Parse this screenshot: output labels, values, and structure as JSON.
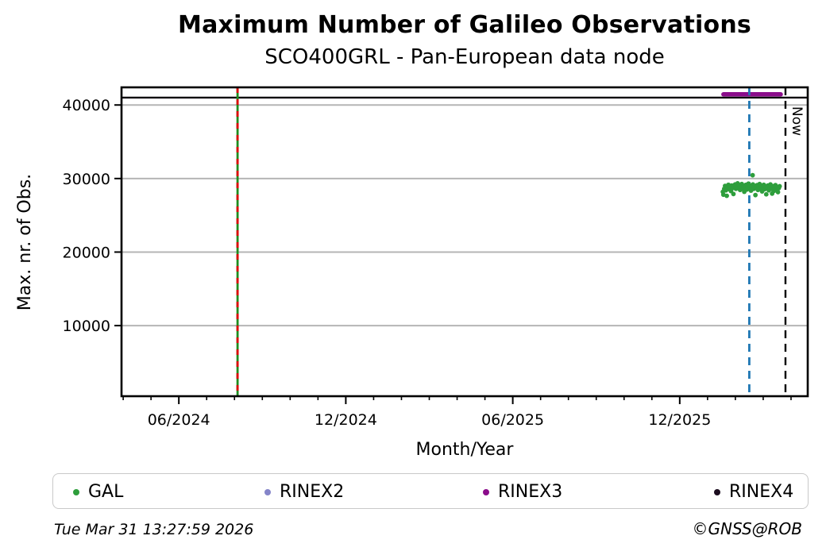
{
  "header": {
    "title": "Maximum Number of Galileo Observations",
    "subtitle": "SCO400GRL - Pan-European data node"
  },
  "chart_data": {
    "type": "scatter",
    "title": "Maximum Number of Galileo Observations",
    "subtitle": "SCO400GRL - Pan-European data node",
    "xlabel": "Month/Year",
    "ylabel": "Max. nr. of Obs.",
    "x_unit": "months since 2024-04-01",
    "xlim": [
      -0.06,
      24.6
    ],
    "ylim": [
      400,
      42400
    ],
    "grid": "horizontal-gray",
    "yticks": [
      10000,
      20000,
      30000,
      40000
    ],
    "xticks_major": [
      {
        "m": 2,
        "label": "06/2024"
      },
      {
        "m": 8,
        "label": "12/2024"
      },
      {
        "m": 14,
        "label": "06/2025"
      },
      {
        "m": 20,
        "label": "12/2025"
      }
    ],
    "xticks_minor_months": [
      0,
      1,
      2,
      3,
      4,
      5,
      6,
      7,
      8,
      9,
      10,
      11,
      12,
      13,
      14,
      15,
      16,
      17,
      18,
      19,
      20,
      21,
      22,
      23,
      24
    ],
    "series": [
      {
        "name": "GAL",
        "color": "#2e9e3c",
        "kind": "scatter",
        "points": [
          [
            21.55,
            28200
          ],
          [
            21.57,
            27800
          ],
          [
            21.6,
            28600
          ],
          [
            21.63,
            29000
          ],
          [
            21.66,
            28400
          ],
          [
            21.69,
            27650
          ],
          [
            21.72,
            28800
          ],
          [
            21.75,
            29150
          ],
          [
            21.78,
            28550
          ],
          [
            21.81,
            28900
          ],
          [
            21.84,
            28300
          ],
          [
            21.87,
            29050
          ],
          [
            21.9,
            28700
          ],
          [
            21.93,
            27900
          ],
          [
            21.96,
            28850
          ],
          [
            21.99,
            29200
          ],
          [
            22.02,
            28600
          ],
          [
            22.05,
            28950
          ],
          [
            22.08,
            29350
          ],
          [
            22.11,
            28750
          ],
          [
            22.14,
            29100
          ],
          [
            22.17,
            28450
          ],
          [
            22.2,
            28900
          ],
          [
            22.23,
            29250
          ],
          [
            22.26,
            28650
          ],
          [
            22.29,
            29000
          ],
          [
            22.32,
            28200
          ],
          [
            22.35,
            28850
          ],
          [
            22.38,
            29150
          ],
          [
            22.41,
            28500
          ],
          [
            22.44,
            28950
          ],
          [
            22.47,
            29300
          ],
          [
            22.5,
            28700
          ],
          [
            22.53,
            29050
          ],
          [
            22.56,
            28350
          ],
          [
            22.59,
            28900
          ],
          [
            22.62,
            30450
          ],
          [
            22.63,
            29200
          ],
          [
            22.66,
            28600
          ],
          [
            22.69,
            28950
          ],
          [
            22.72,
            27750
          ],
          [
            22.75,
            28800
          ],
          [
            22.78,
            29100
          ],
          [
            22.81,
            28450
          ],
          [
            22.84,
            28900
          ],
          [
            22.87,
            29250
          ],
          [
            22.9,
            28650
          ],
          [
            22.93,
            29000
          ],
          [
            22.96,
            28250
          ],
          [
            22.99,
            28800
          ],
          [
            23.02,
            29150
          ],
          [
            23.05,
            28550
          ],
          [
            23.08,
            28900
          ],
          [
            23.11,
            27850
          ],
          [
            23.14,
            28700
          ],
          [
            23.17,
            29050
          ],
          [
            23.2,
            28400
          ],
          [
            23.23,
            28850
          ],
          [
            23.26,
            29200
          ],
          [
            23.29,
            28600
          ],
          [
            23.32,
            27950
          ],
          [
            23.35,
            28950
          ],
          [
            23.38,
            28300
          ],
          [
            23.41,
            28800
          ],
          [
            23.44,
            29100
          ],
          [
            23.47,
            28500
          ],
          [
            23.5,
            28850
          ],
          [
            23.53,
            28150
          ],
          [
            23.56,
            28700
          ],
          [
            23.59,
            28950
          ]
        ]
      },
      {
        "name": "RINEX2",
        "color": "#8585c9",
        "kind": "scatter",
        "points": []
      },
      {
        "name": "RINEX3",
        "color": "#8b0c8b",
        "kind": "hline-segment",
        "value": 41450,
        "m_start": 21.57,
        "m_end": 23.63
      },
      {
        "name": "RINEX4",
        "color": "#0d060f",
        "kind": "hline-segment",
        "value": 41000,
        "m_start": -0.06,
        "m_end": 24.6
      }
    ],
    "vlines": [
      {
        "name": "event-line",
        "m": 4.11,
        "style": "solid-with-dash-overlay",
        "color_solid": "#1e8c1e",
        "color_dash": "#dc0000"
      },
      {
        "name": "blue-dashed-line",
        "m": 22.5,
        "style": "dashed",
        "color": "#1f77b4"
      },
      {
        "name": "now-line",
        "m": 23.8,
        "style": "dashed",
        "color": "#000000",
        "label": "Now"
      }
    ],
    "legend_position": "bottom-outside"
  },
  "legend": {
    "items": [
      {
        "label": "GAL",
        "color": "#2e9e3c"
      },
      {
        "label": "RINEX2",
        "color": "#8585c9"
      },
      {
        "label": "RINEX3",
        "color": "#8b0c8b"
      },
      {
        "label": "RINEX4",
        "color": "#1c0d1f"
      }
    ]
  },
  "footer": {
    "timestamp": "Tue Mar 31 13:27:59 2026",
    "credit": "©GNSS@ROB"
  }
}
